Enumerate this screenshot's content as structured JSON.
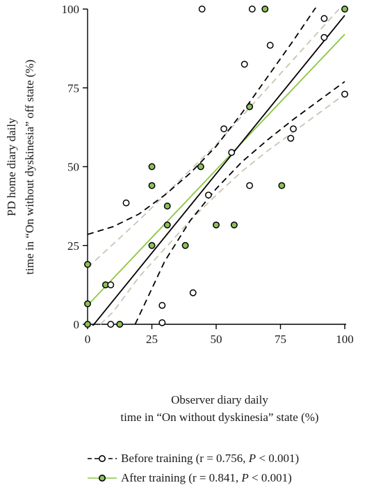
{
  "colors": {
    "before": "#000000",
    "after": "#8cc63f",
    "after_marker_fill": "#8dc05a",
    "after_ci": "#c9c5b2"
  },
  "chart_data": {
    "type": "scatter",
    "xlabel_line1": "Observer diary daily",
    "xlabel_line2": "time in “On without dyskinesia” state (%)",
    "ylabel_line1": "PD home diary daily",
    "ylabel_line2": "time in “On without dyskinesia” off state (%)",
    "x_ticks": [
      "0",
      "25",
      "50",
      "75",
      "100"
    ],
    "y_ticks": [
      "0",
      "25",
      "50",
      "75",
      "100"
    ],
    "xlim": [
      0,
      100
    ],
    "ylim": [
      0,
      100
    ],
    "grid": false,
    "legend_position": "bottom",
    "series": [
      {
        "name_text": "Before training (r = 0.756, ",
        "name_p": "P",
        "name_tail": " < 0.001)",
        "marker": "open-circle",
        "points": [
          [
            9,
            0
          ],
          [
            29,
            0.5
          ],
          [
            29,
            6
          ],
          [
            41,
            10
          ],
          [
            9,
            12.5
          ],
          [
            15,
            38.5
          ],
          [
            47,
            41
          ],
          [
            63,
            44
          ],
          [
            56,
            54.5
          ],
          [
            53,
            62
          ],
          [
            79,
            59
          ],
          [
            80,
            62
          ],
          [
            61,
            82.5
          ],
          [
            71,
            88.5
          ],
          [
            92,
            91
          ],
          [
            92,
            97
          ],
          [
            100,
            73
          ],
          [
            44.5,
            100
          ],
          [
            64,
            100
          ]
        ],
        "fit": {
          "x": [
            0,
            100
          ],
          "y": [
            -2.5,
            98
          ]
        },
        "ci_upper": {
          "x": [
            0,
            10,
            20,
            30,
            40,
            50,
            60,
            70,
            80,
            90,
            94
          ],
          "y": [
            28.5,
            31,
            35,
            41,
            48,
            56.5,
            67,
            78.5,
            90,
            102,
            107
          ]
        },
        "ci_lower": {
          "x": [
            18.5,
            30,
            40,
            50,
            60,
            70,
            80,
            90,
            100
          ],
          "y": [
            0,
            20,
            33,
            43,
            51.5,
            58.5,
            65,
            71,
            77
          ]
        }
      },
      {
        "name_text": "After training (r = 0.841, ",
        "name_p": "P",
        "name_tail": " < 0.001)",
        "marker": "filled-circle",
        "points": [
          [
            0,
            0
          ],
          [
            0,
            6.5
          ],
          [
            0,
            19
          ],
          [
            7,
            12.5
          ],
          [
            12.5,
            0
          ],
          [
            25,
            25
          ],
          [
            31,
            31.5
          ],
          [
            31,
            37.5
          ],
          [
            25,
            44
          ],
          [
            25,
            50
          ],
          [
            38,
            25
          ],
          [
            44,
            50
          ],
          [
            50,
            31.5
          ],
          [
            57,
            31.5
          ],
          [
            63,
            69
          ],
          [
            75.5,
            44
          ],
          [
            69,
            100
          ],
          [
            100,
            100
          ]
        ],
        "fit": {
          "x": [
            0,
            100
          ],
          "y": [
            6,
            92
          ]
        },
        "ci_upper": {
          "x": [
            0,
            10,
            20,
            30,
            40,
            50,
            60,
            70,
            80,
            90,
            100
          ],
          "y": [
            18,
            25.5,
            33,
            41,
            49,
            57,
            66,
            75,
            84,
            93,
            102
          ]
        },
        "ci_lower": {
          "x": [
            5,
            10,
            20,
            30,
            40,
            50,
            60,
            70,
            80,
            90,
            100
          ],
          "y": [
            0,
            4,
            15,
            24,
            33,
            41,
            48.5,
            55,
            61,
            67,
            73
          ]
        }
      }
    ]
  }
}
